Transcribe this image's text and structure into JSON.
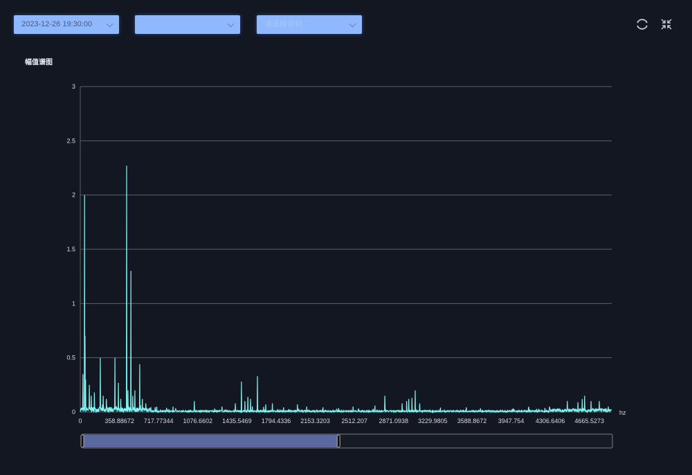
{
  "filters": {
    "datetime": "2023-12-26 19:30:00",
    "second": "",
    "octave_placeholder": "请选择倍频"
  },
  "toolbar": {
    "refresh_icon": "refresh-icon",
    "collapse_icon": "compress-icon"
  },
  "chart_title": "幅值谱图",
  "colors": {
    "line": "#7ef5f0",
    "grid": "#5a5f6b",
    "slider_fill": "#5a68a0",
    "dropdown": "#8fb8ff"
  },
  "chart_data": {
    "type": "line",
    "title": "幅值谱图",
    "xlabel": "hz",
    "ylabel": "",
    "ylim": [
      0,
      3
    ],
    "xlim": [
      0,
      4870
    ],
    "x_step": 2.4414,
    "yticks": [
      "0",
      "0.5",
      "1",
      "1.5",
      "2",
      "2.5",
      "3"
    ],
    "xticks": [
      "0",
      "358.88672",
      "717.77344",
      "1076.6602",
      "1435.5469",
      "1794.4336",
      "2153.3203",
      "2512.207",
      "2871.0938",
      "3229.9805",
      "3588.8672",
      "3947.754",
      "4306.6406",
      "4665.5273"
    ],
    "grid": "horizontal",
    "noise_floor": 0.015,
    "peaks": [
      [
        24,
        0.35
      ],
      [
        38,
        2.0
      ],
      [
        44,
        0.7
      ],
      [
        50,
        0.3
      ],
      [
        82,
        0.25
      ],
      [
        100,
        0.15
      ],
      [
        130,
        0.18
      ],
      [
        184,
        0.5
      ],
      [
        210,
        0.15
      ],
      [
        240,
        0.12
      ],
      [
        317,
        0.5
      ],
      [
        349,
        0.27
      ],
      [
        370,
        0.12
      ],
      [
        425,
        2.27
      ],
      [
        436,
        0.2
      ],
      [
        463,
        1.3
      ],
      [
        480,
        0.15
      ],
      [
        500,
        0.2
      ],
      [
        545,
        0.44
      ],
      [
        570,
        0.12
      ],
      [
        600,
        0.08
      ],
      [
        700,
        0.05
      ],
      [
        850,
        0.05
      ],
      [
        1046,
        0.1
      ],
      [
        1300,
        0.05
      ],
      [
        1420,
        0.08
      ],
      [
        1477,
        0.28
      ],
      [
        1510,
        0.1
      ],
      [
        1535,
        0.14
      ],
      [
        1560,
        0.12
      ],
      [
        1623,
        0.33
      ],
      [
        1700,
        0.07
      ],
      [
        1760,
        0.08
      ],
      [
        1990,
        0.07
      ],
      [
        2500,
        0.05
      ],
      [
        2700,
        0.06
      ],
      [
        2790,
        0.15
      ],
      [
        2950,
        0.08
      ],
      [
        2990,
        0.1
      ],
      [
        3010,
        0.12
      ],
      [
        3040,
        0.13
      ],
      [
        3069,
        0.2
      ],
      [
        3110,
        0.08
      ],
      [
        3300,
        0.04
      ],
      [
        4300,
        0.05
      ],
      [
        4463,
        0.1
      ],
      [
        4560,
        0.09
      ],
      [
        4600,
        0.12
      ],
      [
        4622,
        0.15
      ],
      [
        4680,
        0.1
      ],
      [
        4755,
        0.1
      ],
      [
        4840,
        0.05
      ]
    ],
    "data_zoom": {
      "start_percent": 0,
      "end_percent": 48.4
    }
  }
}
